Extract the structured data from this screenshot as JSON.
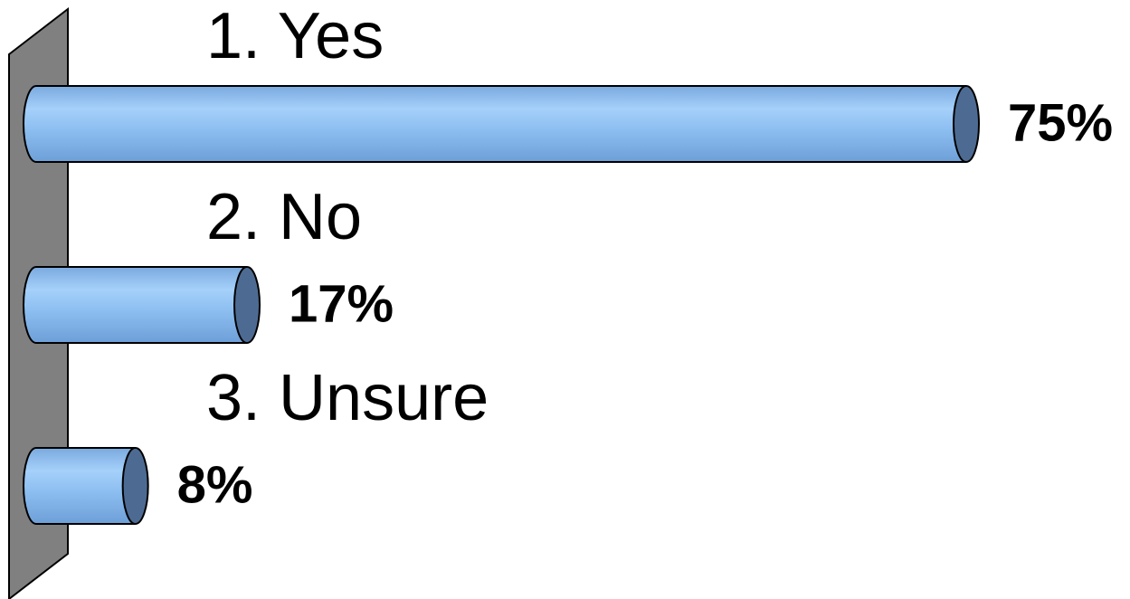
{
  "chart_data": {
    "type": "bar",
    "categories": [
      "1.  Yes",
      "2.  No",
      "3.  Unsure"
    ],
    "values": [
      75,
      17,
      8
    ],
    "value_labels": [
      "75%",
      "17%",
      "8%"
    ],
    "color": "#8dbcf0"
  }
}
